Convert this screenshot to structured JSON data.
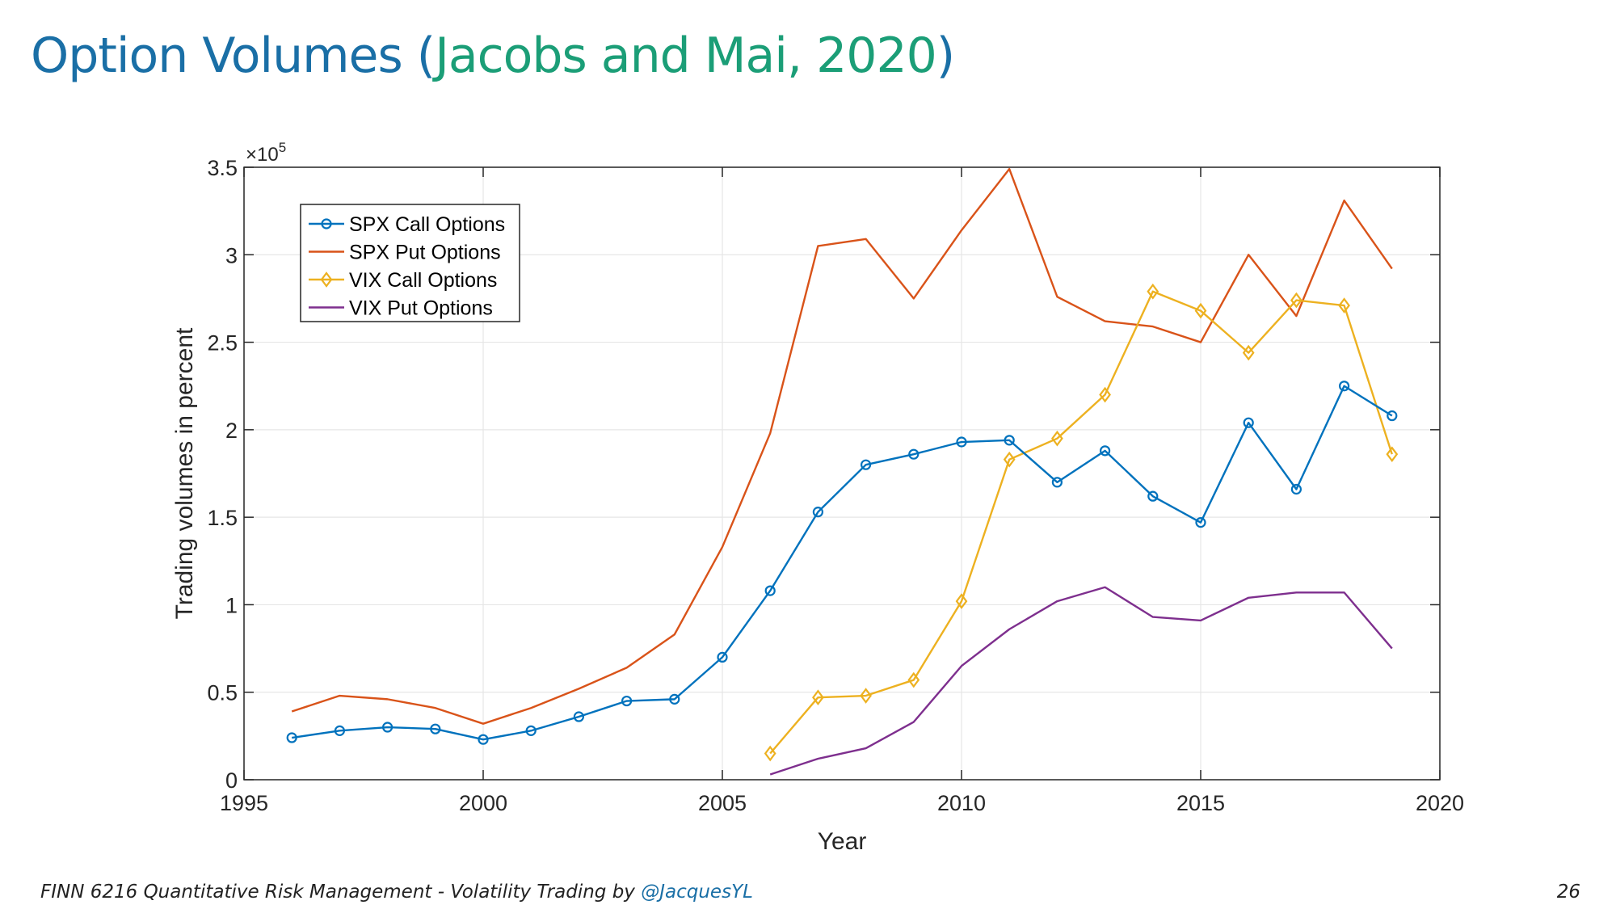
{
  "slide": {
    "title_main": "Option Volumes (",
    "title_cite": "Jacobs and Mai, 2020",
    "title_close": ")",
    "footer_text": "FINN 6216 Quantitative Risk Management - Volatility Trading by ",
    "footer_handle": "@JacquesYL",
    "page_number": "26"
  },
  "chart_data": {
    "type": "line",
    "xlabel": "Year",
    "ylabel": "Trading volumes in percent",
    "y_multiplier_label": "×10",
    "y_multiplier_exp": "5",
    "xlim": [
      1995,
      2020
    ],
    "ylim": [
      0,
      3.5
    ],
    "xticks": [
      1995,
      2000,
      2005,
      2010,
      2015,
      2020
    ],
    "yticks": [
      0,
      0.5,
      1,
      1.5,
      2,
      2.5,
      3,
      3.5
    ],
    "ytick_labels": [
      "0",
      "0.5",
      "1",
      "1.5",
      "2",
      "2.5",
      "3",
      "3.5"
    ],
    "grid": true,
    "legend_position": "top-left",
    "series": [
      {
        "name": "SPX Call Options",
        "color": "#0072bd",
        "marker": "circle",
        "x": [
          1996,
          1997,
          1998,
          1999,
          2000,
          2001,
          2002,
          2003,
          2004,
          2005,
          2006,
          2007,
          2008,
          2009,
          2010,
          2011,
          2012,
          2013,
          2014,
          2015,
          2016,
          2017,
          2018,
          2019
        ],
        "y": [
          0.24,
          0.28,
          0.3,
          0.29,
          0.23,
          0.28,
          0.36,
          0.45,
          0.46,
          0.7,
          1.08,
          1.53,
          1.8,
          1.86,
          1.93,
          1.94,
          1.7,
          1.88,
          1.62,
          1.47,
          2.04,
          1.66,
          2.25,
          2.08
        ]
      },
      {
        "name": "SPX Put Options",
        "color": "#d95319",
        "marker": "none",
        "x": [
          1996,
          1997,
          1998,
          1999,
          2000,
          2001,
          2002,
          2003,
          2004,
          2005,
          2006,
          2007,
          2008,
          2009,
          2010,
          2011,
          2012,
          2013,
          2014,
          2015,
          2016,
          2017,
          2018,
          2019
        ],
        "y": [
          0.39,
          0.48,
          0.46,
          0.41,
          0.32,
          0.41,
          0.52,
          0.64,
          0.83,
          1.33,
          1.98,
          3.05,
          3.09,
          2.75,
          3.14,
          3.49,
          2.76,
          2.62,
          2.59,
          2.5,
          3.0,
          2.65,
          3.31,
          2.92
        ]
      },
      {
        "name": "VIX Call Options",
        "color": "#edb120",
        "marker": "diamond",
        "x": [
          2006,
          2007,
          2008,
          2009,
          2010,
          2011,
          2012,
          2013,
          2014,
          2015,
          2016,
          2017,
          2018,
          2019
        ],
        "y": [
          0.15,
          0.47,
          0.48,
          0.57,
          1.02,
          1.83,
          1.95,
          2.2,
          2.79,
          2.68,
          2.44,
          2.74,
          2.71,
          1.86
        ]
      },
      {
        "name": "VIX Put Options",
        "color": "#7e2f8e",
        "marker": "none",
        "x": [
          2006,
          2007,
          2008,
          2009,
          2010,
          2011,
          2012,
          2013,
          2014,
          2015,
          2016,
          2017,
          2018,
          2019
        ],
        "y": [
          0.03,
          0.12,
          0.18,
          0.33,
          0.65,
          0.86,
          1.02,
          1.1,
          0.93,
          0.91,
          1.04,
          1.07,
          1.07,
          0.75
        ]
      }
    ]
  }
}
